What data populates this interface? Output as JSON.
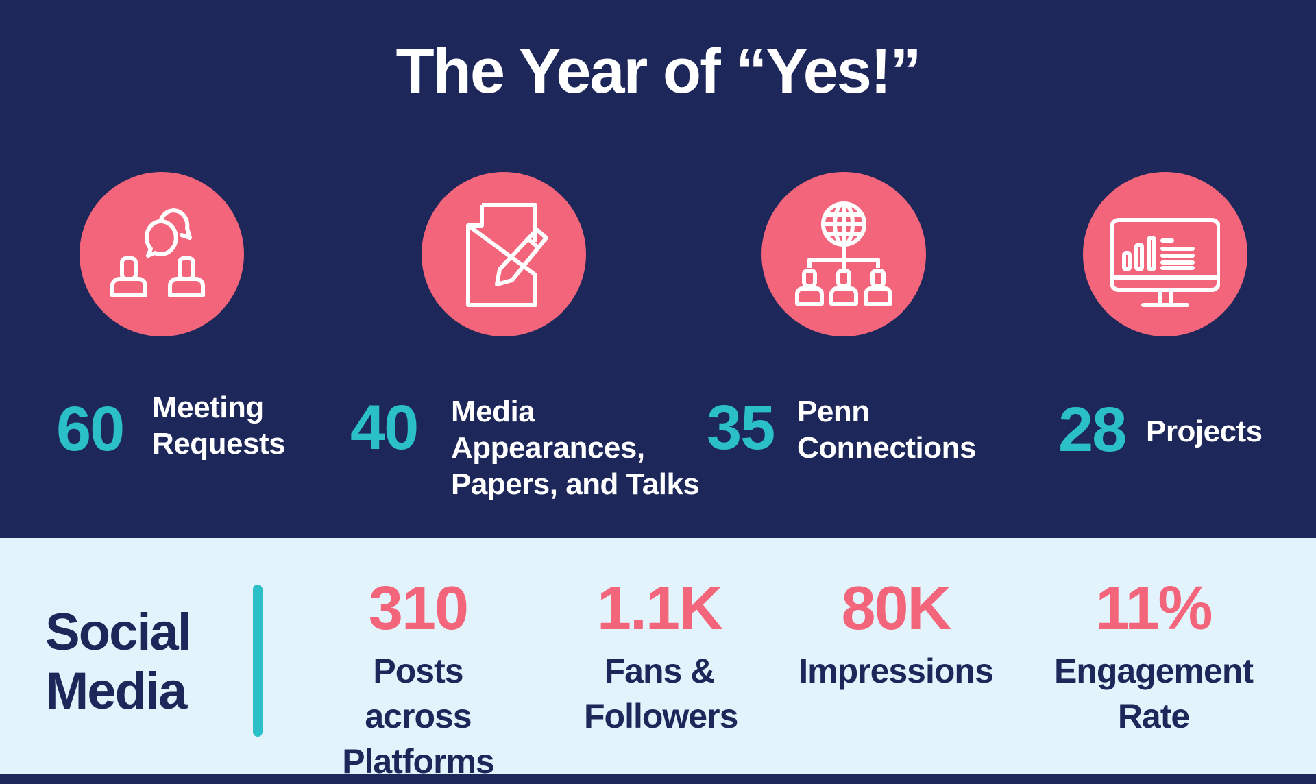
{
  "title": "The Year of “Yes!”",
  "colors": {
    "navy": "#1d2759",
    "pink": "#f2657a",
    "teal": "#2bbfc7",
    "light_bg": "#e3f3fc"
  },
  "stats": [
    {
      "icon": "meeting-chat-icon",
      "value": "60",
      "label": "Meeting\nRequests"
    },
    {
      "icon": "document-pencil-icon",
      "value": "40",
      "label": "Media\nAppearances,\nPapers, and Talks"
    },
    {
      "icon": "globe-network-icon",
      "value": "35",
      "label": "Penn\nConnections"
    },
    {
      "icon": "monitor-chart-icon",
      "value": "28",
      "label": "Projects"
    }
  ],
  "social": {
    "heading": "Social\nMedia",
    "items": [
      {
        "value": "310",
        "label": "Posts across Platforms"
      },
      {
        "value": "1.1K",
        "label": "Fans & Followers"
      },
      {
        "value": "80K",
        "label": "Impressions"
      },
      {
        "value": "11%",
        "label": "Engagement Rate"
      }
    ]
  }
}
